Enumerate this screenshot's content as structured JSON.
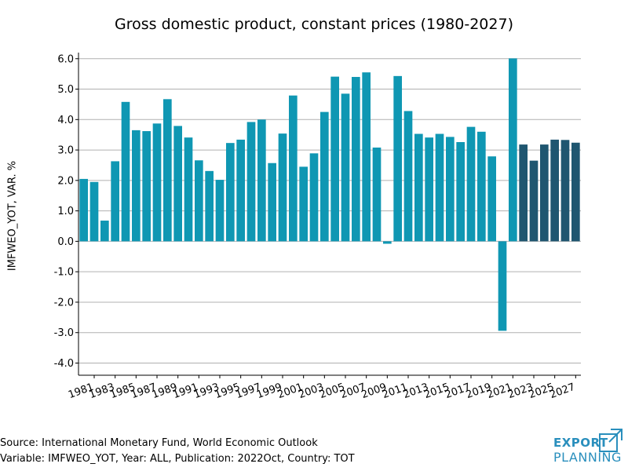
{
  "title": "Gross domestic product, constant prices (1980-2027)",
  "footer": {
    "source": "Source: International Monetary Fund, World Economic Outlook",
    "variable": "Variable: IMFWEO_YOT, Year: ALL, Publication: 2022Oct, Country: TOT"
  },
  "logo": {
    "word1": "EXPORT",
    "word2": "PLANNING"
  },
  "colors": {
    "historical": "#0f97b3",
    "forecast": "#1f5670",
    "grid": "#b0b0b0"
  },
  "chart_data": {
    "type": "bar",
    "title": "Gross domestic product, constant prices (1980-2027)",
    "xlabel": "",
    "ylabel": "IMFWEO_YOT, VAR. %",
    "ylim": [
      -4.4,
      6.2
    ],
    "yticks": [
      6.0,
      5.0,
      4.0,
      3.0,
      2.0,
      1.0,
      0.0,
      -1.0,
      -2.0,
      -3.0,
      -4.0
    ],
    "ytick_labels": [
      "6.0",
      "5.0",
      "4.0",
      "3.0",
      "2.0",
      "1.0",
      "0.0",
      "-1.0",
      "-2.0",
      "-3.0",
      "-4.0"
    ],
    "grid": true,
    "x_tick_labels": [
      "1981",
      "1983",
      "1985",
      "1987",
      "1989",
      "1991",
      "1993",
      "1995",
      "1997",
      "1999",
      "2001",
      "2003",
      "2005",
      "2007",
      "2009",
      "2011",
      "2013",
      "2015",
      "2017",
      "2019",
      "2021",
      "2023",
      "2025",
      "2027"
    ],
    "categories": [
      "1980",
      "1981",
      "1982",
      "1983",
      "1984",
      "1985",
      "1986",
      "1987",
      "1988",
      "1989",
      "1990",
      "1991",
      "1992",
      "1993",
      "1994",
      "1995",
      "1996",
      "1997",
      "1998",
      "1999",
      "2000",
      "2001",
      "2002",
      "2003",
      "2004",
      "2005",
      "2006",
      "2007",
      "2008",
      "2009",
      "2010",
      "2011",
      "2012",
      "2013",
      "2014",
      "2015",
      "2016",
      "2017",
      "2018",
      "2019",
      "2020",
      "2021",
      "2022",
      "2023",
      "2024",
      "2025",
      "2026",
      "2027"
    ],
    "values": [
      2.05,
      1.95,
      0.68,
      2.63,
      4.58,
      3.65,
      3.62,
      3.87,
      4.67,
      3.79,
      3.41,
      2.66,
      2.31,
      2.02,
      3.23,
      3.34,
      3.92,
      4.0,
      2.57,
      3.54,
      4.79,
      2.45,
      2.89,
      4.25,
      5.41,
      4.85,
      5.4,
      5.55,
      3.08,
      -0.08,
      5.43,
      4.28,
      3.53,
      3.41,
      3.53,
      3.43,
      3.26,
      3.76,
      3.6,
      2.79,
      -2.94,
      6.01,
      3.18,
      2.65,
      3.18,
      3.34,
      3.33,
      3.24
    ],
    "forecast_from": "2022"
  }
}
